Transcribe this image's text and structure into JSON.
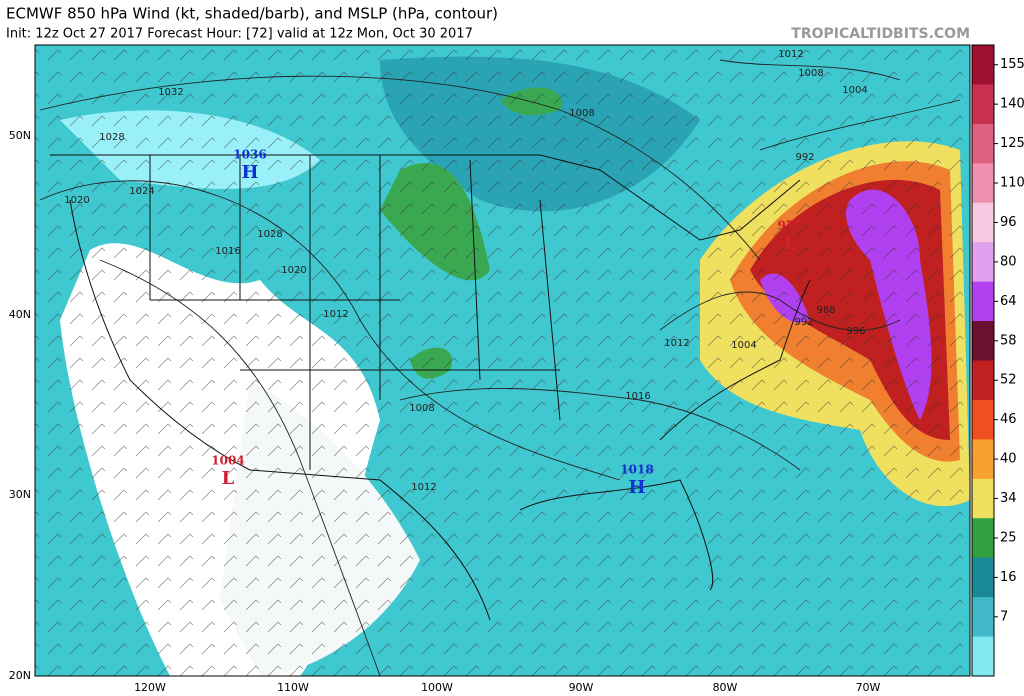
{
  "header": {
    "title": "ECMWF 850 hPa Wind (kt, shaded/barb), and MSLP (hPa, contour)",
    "subtitle": "Init: 12z Oct 27 2017   Forecast Hour: [72]   valid at 12z Mon, Oct 30 2017",
    "site": "TROPICALTIDBITS.COM"
  },
  "map": {
    "lat_labels": [
      "50N",
      "40N",
      "30N",
      "20N"
    ],
    "lon_labels": [
      "120W",
      "110W",
      "100W",
      "90W",
      "80W",
      "70W"
    ],
    "centers": [
      {
        "letter": "H",
        "pressure": "1036"
      },
      {
        "letter": "H",
        "pressure": "1018"
      },
      {
        "letter": "L",
        "pressure": "1004"
      },
      {
        "letter": "L",
        "pressure": "977"
      }
    ],
    "contour_labels": [
      "1032",
      "1028",
      "1024",
      "1020",
      "1016",
      "1028",
      "1020",
      "1012",
      "1008",
      "1012",
      "1016",
      "1012",
      "1004",
      "988",
      "992",
      "996",
      "992",
      "1004",
      "1008",
      "1012",
      "1008"
    ]
  },
  "colorbar": {
    "ticks": [
      155,
      140,
      125,
      110,
      96,
      80,
      64,
      58,
      52,
      46,
      40,
      34,
      25,
      16,
      7
    ],
    "colors": [
      "#a01030",
      "#c83050",
      "#e06080",
      "#f090b0",
      "#f8c8e0",
      "#e0a0f0",
      "#b040f0",
      "#6a1030",
      "#c02020",
      "#f05020",
      "#f8a030",
      "#f0e060",
      "#30a040",
      "#1a8a9a",
      "#40b8c8",
      "#80e8f0"
    ]
  }
}
